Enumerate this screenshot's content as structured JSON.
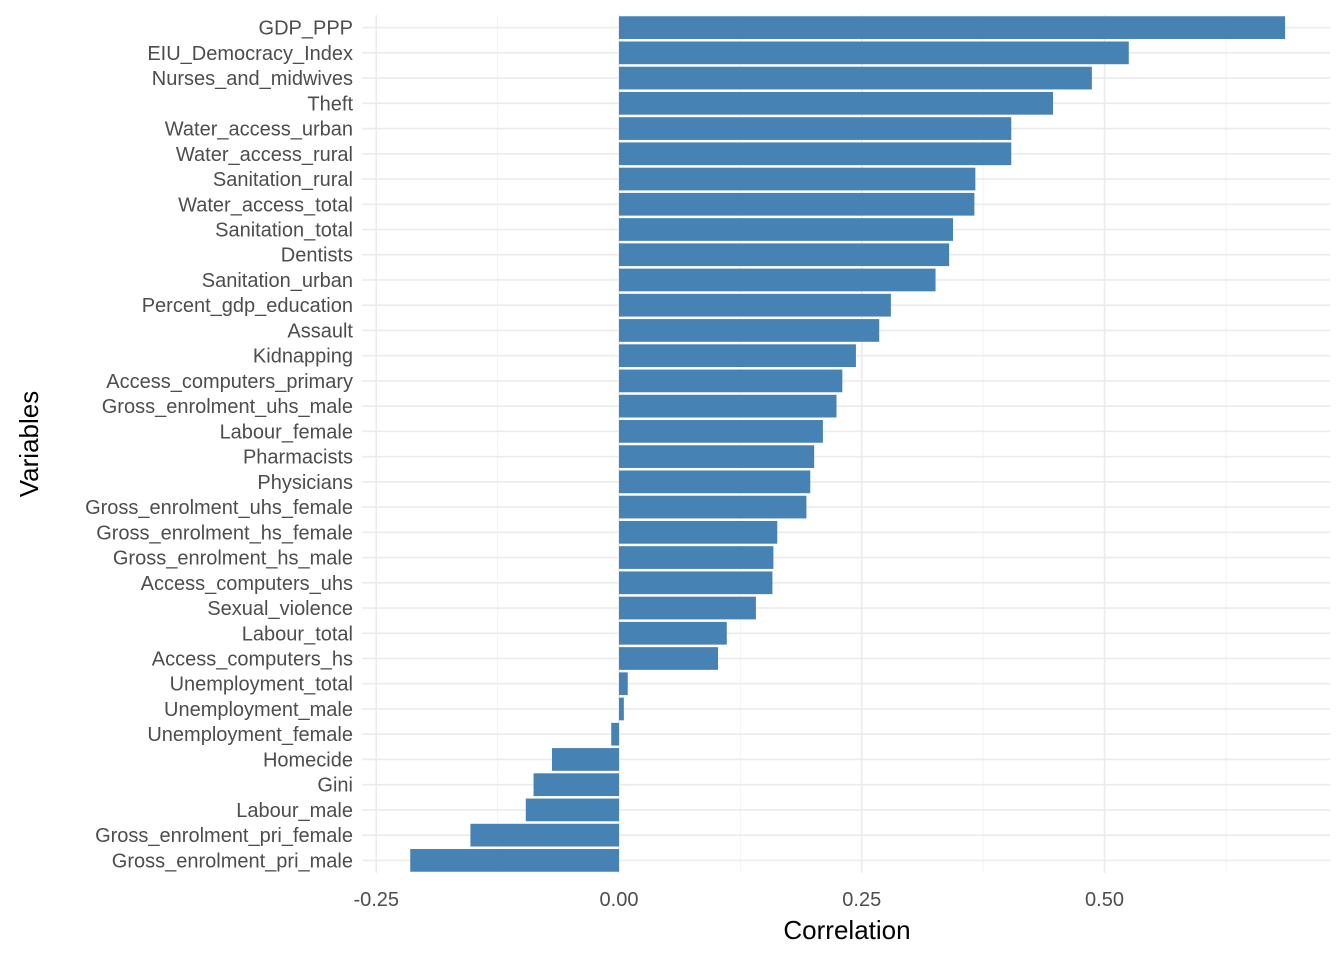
{
  "chart_data": {
    "type": "bar",
    "orientation": "horizontal",
    "xlabel": "Correlation",
    "ylabel": "Variables",
    "xlim": [
      -0.25,
      0.71
    ],
    "x_ticks": [
      -0.25,
      0.0,
      0.25,
      0.5
    ],
    "x_tick_labels": [
      "-0.25",
      "0.00",
      "0.25",
      "0.50"
    ],
    "grid": true,
    "bar_color": "#4682B4",
    "categories": [
      "GDP_PPP",
      "EIU_Democracy_Index",
      "Nurses_and_midwives",
      "Theft",
      "Water_access_urban",
      "Water_access_rural",
      "Sanitation_rural",
      "Water_access_total",
      "Sanitation_total",
      "Dentists",
      "Sanitation_urban",
      "Percent_gdp_education",
      "Assault",
      "Kidnapping",
      "Access_computers_primary",
      "Gross_enrolment_uhs_male",
      "Labour_female",
      "Pharmacists",
      "Physicians",
      "Gross_enrolment_uhs_female",
      "Gross_enrolment_hs_female",
      "Gross_enrolment_hs_male",
      "Access_computers_uhs",
      "Sexual_violence",
      "Labour_total",
      "Access_computers_hs",
      "Unemployment_total",
      "Unemployment_male",
      "Unemployment_female",
      "Homecide",
      "Gini",
      "Labour_male",
      "Gross_enrolment_pri_female",
      "Gross_enrolment_pri_male"
    ],
    "values": [
      0.686,
      0.525,
      0.487,
      0.447,
      0.404,
      0.404,
      0.367,
      0.366,
      0.344,
      0.34,
      0.326,
      0.28,
      0.268,
      0.244,
      0.23,
      0.224,
      0.21,
      0.201,
      0.197,
      0.193,
      0.163,
      0.159,
      0.158,
      0.141,
      0.111,
      0.102,
      0.009,
      0.005,
      -0.008,
      -0.069,
      -0.088,
      -0.096,
      -0.153,
      -0.215
    ]
  }
}
